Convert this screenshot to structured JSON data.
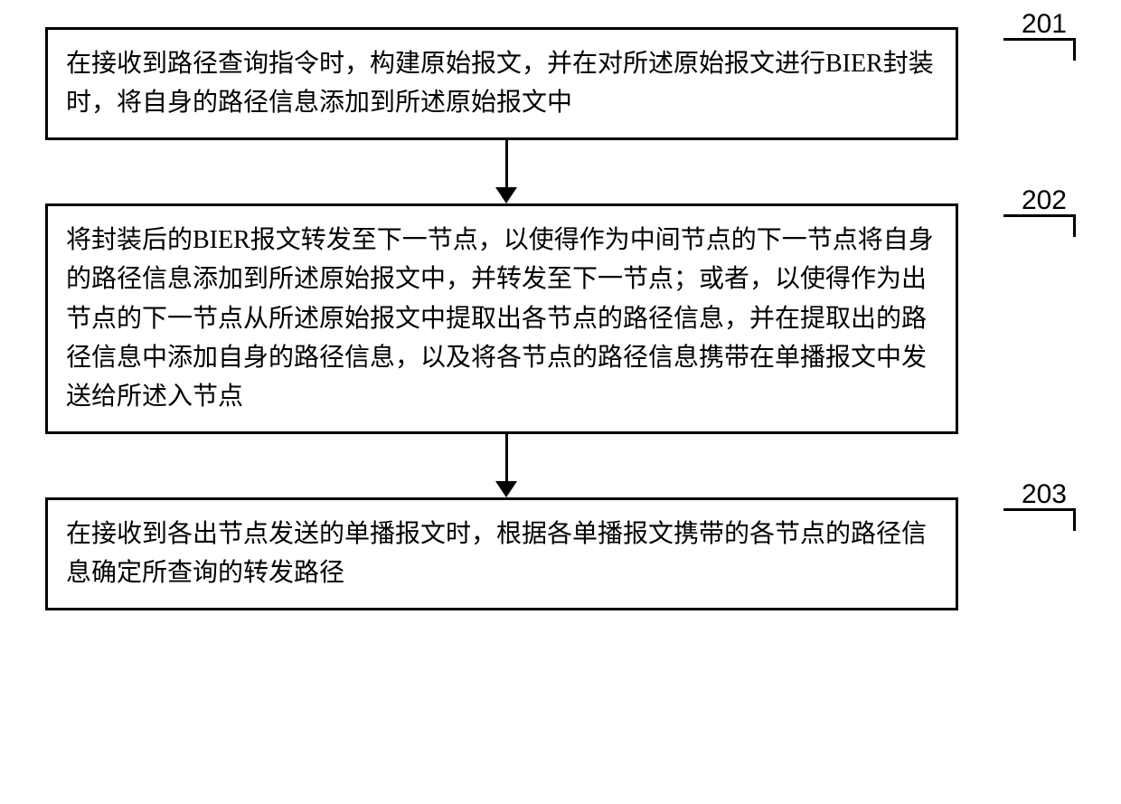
{
  "flowchart": {
    "type": "flowchart",
    "direction": "vertical",
    "border_color": "#000000",
    "border_width": 3,
    "background_color": "#ffffff",
    "text_color": "#000000",
    "font_size": 28,
    "label_font_size": 30,
    "line_height": 1.55,
    "arrow_height": 70,
    "steps": [
      {
        "number": "201",
        "text": "在接收到路径查询指令时，构建原始报文，并在对所述原始报文进行BIER封装时，将自身的路径信息添加到所述原始报文中"
      },
      {
        "number": "202",
        "text": "将封装后的BIER报文转发至下一节点，以使得作为中间节点的下一节点将自身的路径信息添加到所述原始报文中，并转发至下一节点；或者，以使得作为出节点的下一节点从所述原始报文中提取出各节点的路径信息，并在提取出的路径信息中添加自身的路径信息，以及将各节点的路径信息携带在单播报文中发送给所述入节点"
      },
      {
        "number": "203",
        "text": "在接收到各出节点发送的单播报文时，根据各单播报文携带的各节点的路径信息确定所查询的转发路径"
      }
    ]
  }
}
